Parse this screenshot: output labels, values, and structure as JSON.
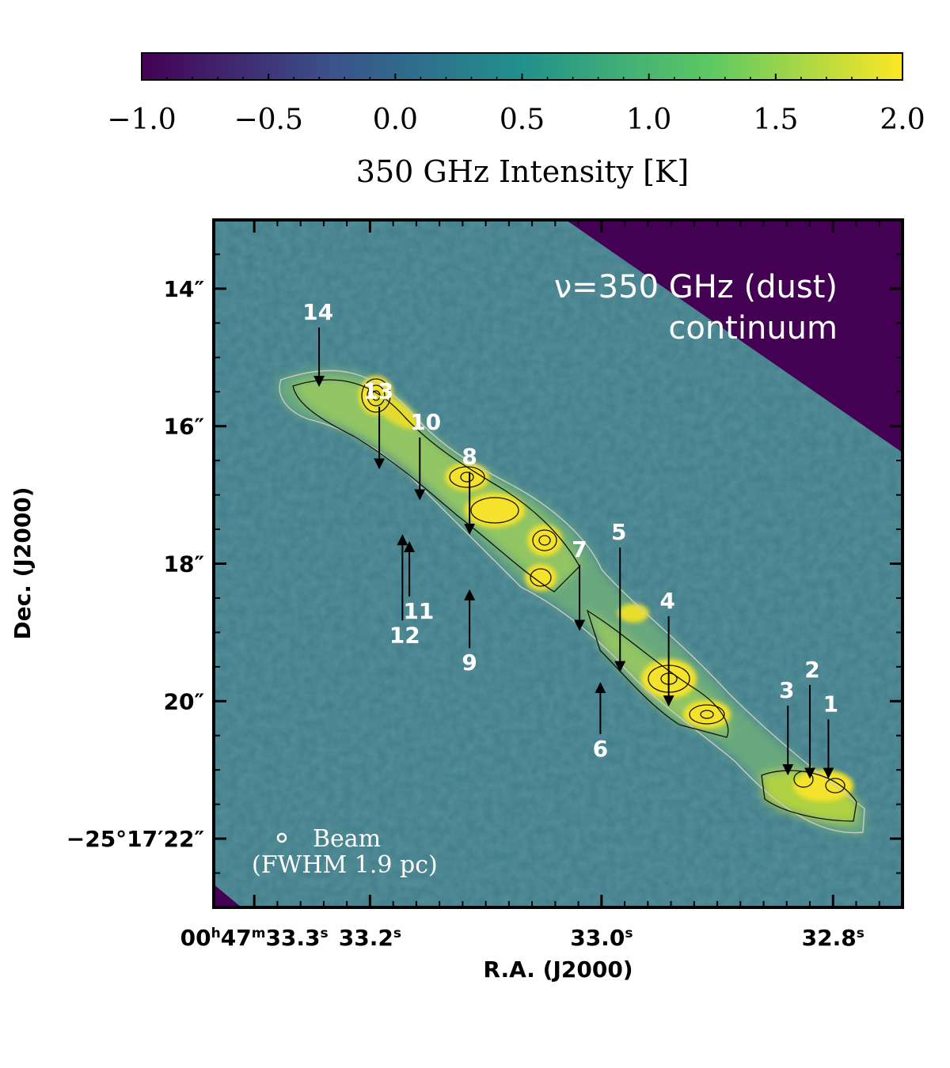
{
  "chart_data": {
    "type": "heatmap",
    "colorbar": {
      "label": "350 GHz Intensity [K]",
      "range": [
        -1.0,
        2.0
      ],
      "ticks": [
        "−1.0",
        "−0.5",
        "0.0",
        "0.5",
        "1.0",
        "1.5",
        "2.0"
      ],
      "colormap": [
        "#440154",
        "#3b528b",
        "#21918c",
        "#5ec962",
        "#fde725"
      ]
    },
    "title_lines": [
      "ν=350 GHz (dust)",
      "continuum"
    ],
    "xlabel": "R.A. (J2000)",
    "ylabel": "Dec. (J2000)",
    "x_ticks": [
      {
        "ra_s": 33.3,
        "label": "00h47m33.3s"
      },
      {
        "ra_s": 33.2,
        "label": "33.2s"
      },
      {
        "ra_s": 33.0,
        "label": "33.0s"
      },
      {
        "ra_s": 32.8,
        "label": "32.8s"
      }
    ],
    "y_ticks": [
      {
        "dec_arcsec": 14,
        "label": "14″"
      },
      {
        "dec_arcsec": 16,
        "label": "16″"
      },
      {
        "dec_arcsec": 18,
        "label": "18″"
      },
      {
        "dec_arcsec": 20,
        "label": "20″"
      },
      {
        "dec_arcsec": 22,
        "label": "−25°17′22″"
      }
    ],
    "xlim_ra_s": [
      33.335,
      32.74
    ],
    "ylim_dec_arcsec": [
      13.0,
      23.0
    ],
    "clumps": [
      {
        "id": "1",
        "ra_s": 32.804,
        "dec_arcsec": 21.25,
        "label_ra_s": 32.802,
        "label_dec_arcsec": 20.15,
        "arrow": "down"
      },
      {
        "id": "2",
        "ra_s": 32.82,
        "dec_arcsec": 21.25,
        "label_ra_s": 32.818,
        "label_dec_arcsec": 19.65,
        "arrow": "down"
      },
      {
        "id": "3",
        "ra_s": 32.839,
        "dec_arcsec": 21.2,
        "label_ra_s": 32.84,
        "label_dec_arcsec": 19.95,
        "arrow": "down"
      },
      {
        "id": "4",
        "ra_s": 32.942,
        "dec_arcsec": 20.2,
        "label_ra_s": 32.943,
        "label_dec_arcsec": 18.65,
        "arrow": "down"
      },
      {
        "id": "5",
        "ra_s": 32.984,
        "dec_arcsec": 19.7,
        "label_ra_s": 32.985,
        "label_dec_arcsec": 17.65,
        "arrow": "down"
      },
      {
        "id": "6",
        "ra_s": 33.001,
        "dec_arcsec": 19.6,
        "label_ra_s": 33.001,
        "label_dec_arcsec": 20.8,
        "arrow": "up"
      },
      {
        "id": "7",
        "ra_s": 33.019,
        "dec_arcsec": 19.1,
        "label_ra_s": 33.019,
        "label_dec_arcsec": 17.9,
        "arrow": "down"
      },
      {
        "id": "8",
        "ra_s": 33.114,
        "dec_arcsec": 17.7,
        "label_ra_s": 33.114,
        "label_dec_arcsec": 16.55,
        "arrow": "down"
      },
      {
        "id": "9",
        "ra_s": 33.114,
        "dec_arcsec": 18.25,
        "label_ra_s": 33.114,
        "label_dec_arcsec": 19.55,
        "arrow": "up"
      },
      {
        "id": "10",
        "ra_s": 33.157,
        "dec_arcsec": 17.2,
        "label_ra_s": 33.152,
        "label_dec_arcsec": 16.05,
        "arrow": "down"
      },
      {
        "id": "11",
        "ra_s": 33.166,
        "dec_arcsec": 17.55,
        "label_ra_s": 33.158,
        "label_dec_arcsec": 18.8,
        "arrow": "up"
      },
      {
        "id": "12",
        "ra_s": 33.172,
        "dec_arcsec": 17.45,
        "label_ra_s": 33.17,
        "label_dec_arcsec": 19.15,
        "arrow": "up"
      },
      {
        "id": "13",
        "ra_s": 33.192,
        "dec_arcsec": 16.75,
        "label_ra_s": 33.193,
        "label_dec_arcsec": 15.6,
        "arrow": "down"
      },
      {
        "id": "14",
        "ra_s": 33.244,
        "dec_arcsec": 15.55,
        "label_ra_s": 33.245,
        "label_dec_arcsec": 14.45,
        "arrow": "down"
      }
    ],
    "beam": {
      "label": "Beam",
      "fwhm_label": "(FWHM 1.9 pc)"
    }
  }
}
